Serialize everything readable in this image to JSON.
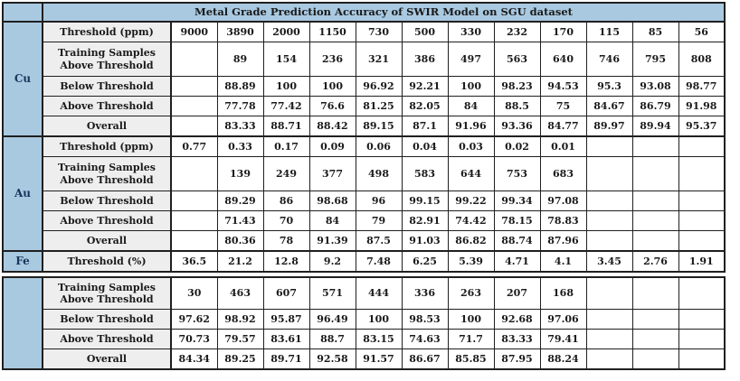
{
  "chart_data": {
    "type": "table",
    "title": "Metal Grade Prediction Accuracy of SWIR Model on SGU dataset",
    "sections": [
      {
        "metal": "Cu",
        "rows": [
          {
            "label": "Threshold (ppm)",
            "values": [
              "9000",
              "3890",
              "2000",
              "1150",
              "730",
              "500",
              "330",
              "232",
              "170",
              "115",
              "85",
              "56"
            ]
          },
          {
            "label": "Training Samples Above Threshold",
            "values": [
              "",
              "89",
              "154",
              "236",
              "321",
              "386",
              "497",
              "563",
              "640",
              "746",
              "795",
              "808"
            ]
          },
          {
            "label": "Below Threshold",
            "values": [
              "",
              "88.89",
              "100",
              "100",
              "96.92",
              "92.21",
              "100",
              "98.23",
              "94.53",
              "95.3",
              "93.08",
              "98.77"
            ]
          },
          {
            "label": "Above Threshold",
            "values": [
              "",
              "77.78",
              "77.42",
              "76.6",
              "81.25",
              "82.05",
              "84",
              "88.5",
              "75",
              "84.67",
              "86.79",
              "91.98"
            ]
          },
          {
            "label": "Overall",
            "values": [
              "",
              "83.33",
              "88.71",
              "88.42",
              "89.15",
              "87.1",
              "91.96",
              "93.36",
              "84.77",
              "89.97",
              "89.94",
              "95.37"
            ]
          }
        ]
      },
      {
        "metal": "Au",
        "rows": [
          {
            "label": "Threshold (ppm)",
            "values": [
              "0.77",
              "0.33",
              "0.17",
              "0.09",
              "0.06",
              "0.04",
              "0.03",
              "0.02",
              "0.01",
              "",
              "",
              ""
            ]
          },
          {
            "label": "Training Samples Above Threshold",
            "values": [
              "",
              "139",
              "249",
              "377",
              "498",
              "583",
              "644",
              "753",
              "683",
              "",
              "",
              ""
            ]
          },
          {
            "label": "Below Threshold",
            "values": [
              "",
              "89.29",
              "86",
              "98.68",
              "96",
              "99.15",
              "99.22",
              "99.34",
              "97.08",
              "",
              "",
              ""
            ]
          },
          {
            "label": "Above Threshold",
            "values": [
              "",
              "71.43",
              "70",
              "84",
              "79",
              "82.91",
              "74.42",
              "78.15",
              "78.83",
              "",
              "",
              ""
            ]
          },
          {
            "label": "Overall",
            "values": [
              "",
              "80.36",
              "78",
              "91.39",
              "87.5",
              "91.03",
              "86.82",
              "88.74",
              "87.96",
              "",
              "",
              ""
            ]
          }
        ]
      },
      {
        "metal": "Fe",
        "rows": [
          {
            "label": "Threshold (%)",
            "values": [
              "36.5",
              "21.2",
              "12.8",
              "9.2",
              "7.48",
              "6.25",
              "5.39",
              "4.71",
              "4.1",
              "3.45",
              "2.76",
              "1.91"
            ]
          }
        ]
      }
    ],
    "continuation": {
      "metal": "",
      "rows": [
        {
          "label": "Training Samples Above Threshold",
          "values": [
            "30",
            "463",
            "607",
            "571",
            "444",
            "336",
            "263",
            "207",
            "168",
            "",
            "",
            ""
          ]
        },
        {
          "label": "Below Threshold",
          "values": [
            "97.62",
            "98.92",
            "95.87",
            "96.49",
            "100",
            "98.53",
            "100",
            "92.68",
            "97.06",
            "",
            "",
            ""
          ]
        },
        {
          "label": "Above Threshold",
          "values": [
            "70.73",
            "79.57",
            "83.61",
            "88.7",
            "83.15",
            "74.63",
            "71.7",
            "83.33",
            "79.41",
            "",
            "",
            ""
          ]
        },
        {
          "label": "Overall",
          "values": [
            "84.34",
            "89.25",
            "89.71",
            "92.58",
            "91.57",
            "86.67",
            "85.85",
            "87.95",
            "88.24",
            "",
            "",
            ""
          ]
        }
      ]
    }
  },
  "colors": {
    "header_blue": "#a9c9e1",
    "label_gray": "#eeeeee",
    "border": "#1f1f1f",
    "text": "#1a1a1a",
    "metal_text": "#17365d"
  }
}
